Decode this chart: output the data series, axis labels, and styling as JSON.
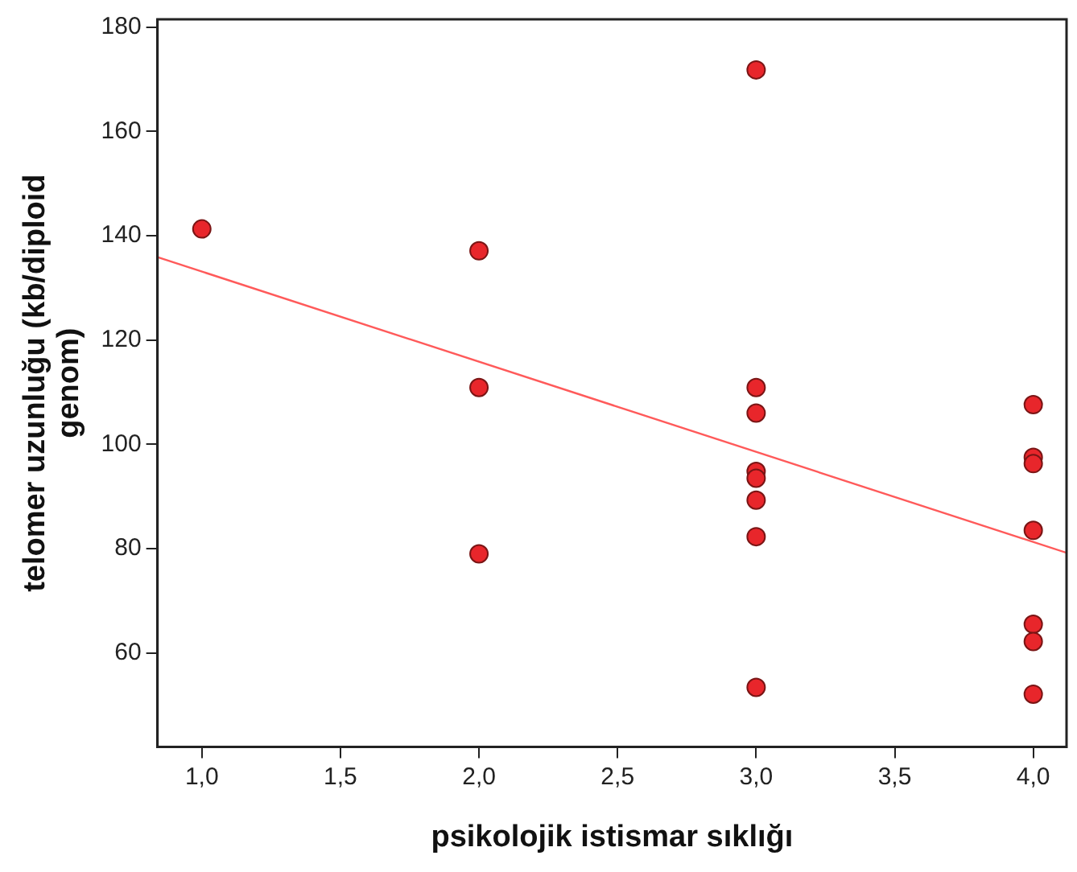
{
  "chart_data": {
    "type": "scatter",
    "xlabel": "psikolojik istismar sıklığı",
    "ylabel": "telomer uzunluğu (kb/diploid genom)",
    "xlim": [
      0.84,
      4.12
    ],
    "ylim": [
      42,
      181.5
    ],
    "xticks": [
      {
        "value": 1,
        "label": "1,0"
      },
      {
        "value": 1.5,
        "label": "1,5"
      },
      {
        "value": 2,
        "label": "2,0"
      },
      {
        "value": 2.5,
        "label": "2,5"
      },
      {
        "value": 3,
        "label": "3,0"
      },
      {
        "value": 3.5,
        "label": "3,5"
      },
      {
        "value": 4,
        "label": "4,0"
      }
    ],
    "yticks": [
      60,
      80,
      100,
      120,
      140,
      160,
      180
    ],
    "grid": false,
    "legend": false,
    "marker": "circle",
    "series": [
      {
        "color": "#e8262b",
        "x": [
          1,
          2,
          2,
          2,
          3,
          3,
          3,
          3,
          3,
          3,
          3,
          3,
          4,
          4,
          4,
          4,
          4,
          4,
          4
        ],
        "values": [
          141.3,
          137.1,
          110.9,
          79,
          171.8,
          110.9,
          106,
          94.8,
          93.5,
          89.3,
          82.3,
          53.4,
          107.6,
          97.5,
          96.3,
          83.5,
          65.5,
          62.2,
          52.1
        ]
      },
      {
        "type": "line",
        "color": "#ff5a5a",
        "marker": "none",
        "x": [
          0.84,
          4.12
        ],
        "values": [
          135.9,
          79.2
        ]
      }
    ]
  }
}
